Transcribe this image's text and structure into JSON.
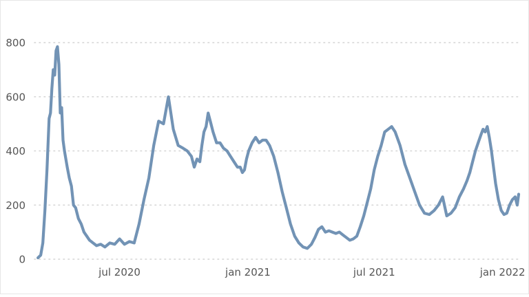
{
  "chart_data": {
    "type": "line",
    "title": "",
    "xlabel": "",
    "ylabel": "",
    "ylim": [
      0,
      800
    ],
    "yticks": [
      0,
      200,
      400,
      600,
      800
    ],
    "xticks": [
      "jul 2020",
      "jan 2021",
      "jul 2021",
      "jan 2022"
    ],
    "xtick_dates": [
      "2020-07-01",
      "2021-01-01",
      "2021-07-01",
      "2022-01-01"
    ],
    "xlim": [
      "2020-03-01",
      "2022-01-26"
    ],
    "grid": "horizontal-dotted",
    "colors": {
      "line": "#7293b5",
      "grid": "#d4d4d4",
      "text": "#555555"
    },
    "series": [
      {
        "x": [
          "2020-03-06",
          "2020-03-10",
          "2020-03-13",
          "2020-03-16",
          "2020-03-19",
          "2020-03-22",
          "2020-03-24",
          "2020-03-26",
          "2020-03-28",
          "2020-03-30",
          "2020-04-01",
          "2020-04-03",
          "2020-04-05",
          "2020-04-07",
          "2020-04-09",
          "2020-04-11",
          "2020-04-13",
          "2020-04-15",
          "2020-04-17",
          "2020-04-20",
          "2020-04-23",
          "2020-04-26",
          "2020-04-29",
          "2020-05-03",
          "2020-05-07",
          "2020-05-11",
          "2020-05-15",
          "2020-05-19",
          "2020-05-24",
          "2020-05-29",
          "2020-06-04",
          "2020-06-10",
          "2020-06-17",
          "2020-06-24",
          "2020-07-01",
          "2020-07-08",
          "2020-07-15",
          "2020-07-22",
          "2020-07-29",
          "2020-08-05",
          "2020-08-12",
          "2020-08-19",
          "2020-08-26",
          "2020-09-02",
          "2020-09-09",
          "2020-09-16",
          "2020-09-23",
          "2020-09-30",
          "2020-10-06",
          "2020-10-12",
          "2020-10-16",
          "2020-10-20",
          "2020-10-24",
          "2020-10-27",
          "2020-10-30",
          "2020-11-02",
          "2020-11-05",
          "2020-11-08",
          "2020-11-12",
          "2020-11-17",
          "2020-11-22",
          "2020-11-27",
          "2020-12-02",
          "2020-12-07",
          "2020-12-12",
          "2020-12-17",
          "2020-12-21",
          "2020-12-24",
          "2020-12-27",
          "2020-12-30",
          "2021-01-02",
          "2021-01-07",
          "2021-01-12",
          "2021-01-17",
          "2021-01-22",
          "2021-01-27",
          "2021-02-01",
          "2021-02-07",
          "2021-02-13",
          "2021-02-19",
          "2021-02-25",
          "2021-03-03",
          "2021-03-09",
          "2021-03-15",
          "2021-03-21",
          "2021-03-27",
          "2021-04-02",
          "2021-04-07",
          "2021-04-12",
          "2021-04-17",
          "2021-04-22",
          "2021-04-27",
          "2021-05-02",
          "2021-05-07",
          "2021-05-12",
          "2021-05-17",
          "2021-05-22",
          "2021-05-27",
          "2021-06-01",
          "2021-06-06",
          "2021-06-11",
          "2021-06-16",
          "2021-06-21",
          "2021-06-26",
          "2021-07-01",
          "2021-07-06",
          "2021-07-11",
          "2021-07-16",
          "2021-07-21",
          "2021-07-26",
          "2021-07-31",
          "2021-08-07",
          "2021-08-14",
          "2021-08-21",
          "2021-08-28",
          "2021-09-04",
          "2021-09-11",
          "2021-09-18",
          "2021-09-25",
          "2021-10-01",
          "2021-10-07",
          "2021-10-13",
          "2021-10-19",
          "2021-10-25",
          "2021-10-31",
          "2021-11-06",
          "2021-11-11",
          "2021-11-15",
          "2021-11-19",
          "2021-11-23",
          "2021-11-27",
          "2021-12-01",
          "2021-12-04",
          "2021-12-07",
          "2021-12-10",
          "2021-12-13",
          "2021-12-16",
          "2021-12-19",
          "2021-12-22",
          "2021-12-26",
          "2021-12-30",
          "2022-01-03",
          "2022-01-07",
          "2022-01-11",
          "2022-01-15",
          "2022-01-19",
          "2022-01-22",
          "2022-01-24"
        ],
        "values": [
          5,
          15,
          60,
          180,
          330,
          520,
          540,
          630,
          700,
          680,
          770,
          785,
          720,
          540,
          560,
          440,
          400,
          370,
          340,
          300,
          270,
          200,
          190,
          150,
          130,
          100,
          85,
          70,
          60,
          50,
          55,
          45,
          60,
          55,
          75,
          55,
          65,
          60,
          130,
          220,
          300,
          420,
          510,
          500,
          600,
          480,
          420,
          410,
          400,
          380,
          340,
          370,
          360,
          420,
          470,
          490,
          540,
          510,
          470,
          430,
          430,
          410,
          400,
          380,
          360,
          340,
          340,
          320,
          330,
          370,
          400,
          430,
          450,
          430,
          440,
          440,
          420,
          380,
          320,
          250,
          190,
          130,
          85,
          60,
          45,
          40,
          55,
          80,
          110,
          120,
          100,
          105,
          100,
          95,
          100,
          90,
          80,
          70,
          75,
          85,
          120,
          160,
          210,
          260,
          330,
          380,
          420,
          470,
          480,
          490,
          470,
          420,
          350,
          300,
          250,
          200,
          170,
          165,
          180,
          200,
          230,
          160,
          170,
          190,
          230,
          260,
          290,
          320,
          360,
          400,
          430,
          460,
          480,
          470,
          490,
          450,
          400,
          340,
          280,
          220,
          180,
          165,
          170,
          200,
          220,
          230,
          200,
          240
        ],
        "values_note": ""
      }
    ]
  }
}
